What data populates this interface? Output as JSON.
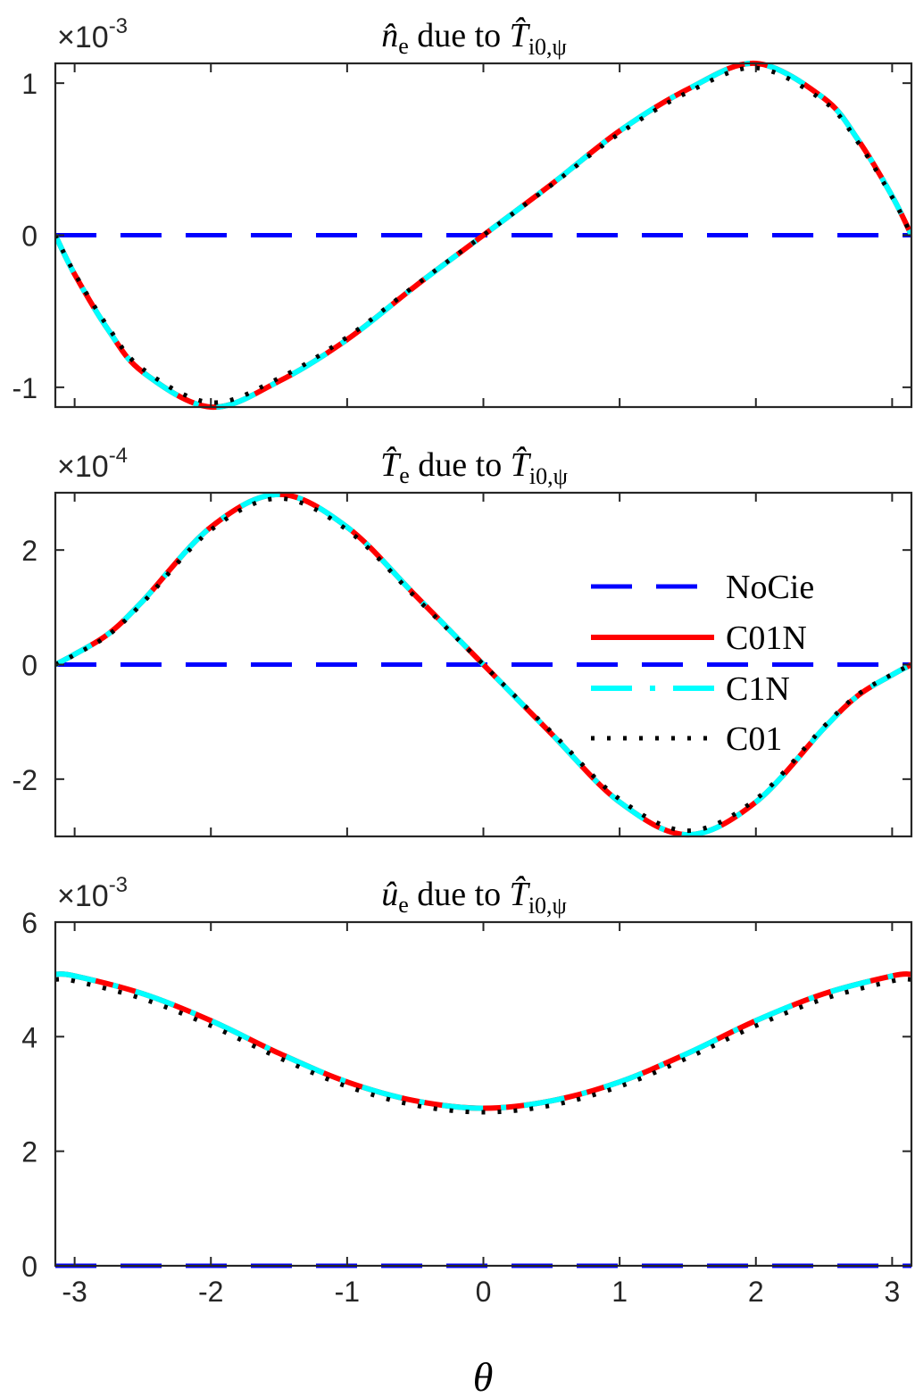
{
  "figure": {
    "xlabel": "θ",
    "xlim": [
      -3.14159,
      3.14159
    ],
    "xticks": [
      -3,
      -2,
      -1,
      0,
      1,
      2,
      3
    ],
    "xtick_labels": [
      "-3",
      "-2",
      "-1",
      "0",
      "1",
      "2",
      "3"
    ]
  },
  "legend": {
    "entries": [
      {
        "label": "NoCie",
        "color": "#0000ff",
        "style": "dashed"
      },
      {
        "label": "C01N",
        "color": "#ff0000",
        "style": "solid"
      },
      {
        "label": "C1N",
        "color": "#00ffff",
        "style": "dashdot"
      },
      {
        "label": "C01",
        "color": "#000000",
        "style": "dotted"
      }
    ]
  },
  "chart_data": [
    {
      "type": "line",
      "title": "n̂e due to T̂i0,ψ",
      "title_parts": {
        "main": "n̂",
        "sub": "e",
        "mid": " due to ",
        "main2": "T̂",
        "sub2": "i0,ψ"
      },
      "xlabel": "",
      "ylabel": "",
      "exponent_label": {
        "base": "×10",
        "exp": "-3"
      },
      "xlim": [
        -3.14159,
        3.14159
      ],
      "ylim": [
        -1.13,
        1.13
      ],
      "yticks": [
        -1,
        0,
        1
      ],
      "ytick_labels": [
        "-1",
        "0",
        "1"
      ],
      "grid": false,
      "x": [
        -3.1416,
        -3.0,
        -2.75,
        -2.5,
        -2.0,
        -1.5,
        -1.0,
        -0.5,
        0.0,
        0.5,
        1.0,
        1.5,
        2.0,
        2.5,
        2.75,
        3.0,
        3.1416
      ],
      "series": [
        {
          "name": "NoCie",
          "values": [
            0,
            0,
            0,
            0,
            0,
            0,
            0,
            0,
            0,
            0,
            0,
            0,
            0,
            0,
            0,
            0,
            0
          ]
        },
        {
          "name": "C01N",
          "values": [
            0,
            -0.257,
            -0.627,
            -0.9,
            -1.13,
            -0.96,
            -0.686,
            -0.335,
            0,
            0.335,
            0.686,
            0.96,
            1.13,
            0.9,
            0.627,
            0.257,
            0
          ]
        },
        {
          "name": "C1N",
          "values": [
            0,
            -0.257,
            -0.627,
            -0.9,
            -1.13,
            -0.96,
            -0.686,
            -0.335,
            0,
            0.335,
            0.686,
            0.96,
            1.13,
            0.9,
            0.627,
            0.257,
            0
          ]
        },
        {
          "name": "C01",
          "values": [
            0,
            -0.25,
            -0.61,
            -0.88,
            -1.1,
            -0.94,
            -0.67,
            -0.33,
            0,
            0.33,
            0.67,
            0.94,
            1.1,
            0.88,
            0.61,
            0.25,
            0
          ]
        }
      ]
    },
    {
      "type": "line",
      "title": "T̂e due to T̂i0,ψ",
      "title_parts": {
        "main": "T̂",
        "sub": "e",
        "mid": " due to ",
        "main2": "T̂",
        "sub2": "i0,ψ"
      },
      "xlabel": "",
      "ylabel": "",
      "exponent_label": {
        "base": "×10",
        "exp": "-4"
      },
      "xlim": [
        -3.14159,
        3.14159
      ],
      "ylim": [
        -3.0,
        3.0
      ],
      "yticks": [
        -2,
        0,
        2
      ],
      "ytick_labels": [
        "-2",
        "0",
        "2"
      ],
      "grid": false,
      "legend_position": "east",
      "x": [
        -3.1416,
        -3.0,
        -2.75,
        -2.5,
        -2.0,
        -1.5,
        -1.0,
        -0.5,
        0.0,
        0.5,
        1.0,
        1.5,
        2.0,
        2.5,
        2.75,
        3.0,
        3.1416
      ],
      "series": [
        {
          "name": "NoCie",
          "values": [
            0,
            0,
            0,
            0,
            0,
            0,
            0,
            0,
            0,
            0,
            0,
            0,
            0,
            0,
            0,
            0,
            0
          ]
        },
        {
          "name": "C01N",
          "values": [
            0,
            0.18,
            0.54,
            1.11,
            2.4,
            2.97,
            2.4,
            1.21,
            0,
            -1.21,
            -2.4,
            -2.97,
            -2.4,
            -1.11,
            -0.54,
            -0.18,
            0
          ]
        },
        {
          "name": "C1N",
          "values": [
            0,
            0.18,
            0.54,
            1.11,
            2.4,
            2.97,
            2.4,
            1.21,
            0,
            -1.21,
            -2.4,
            -2.97,
            -2.4,
            -1.11,
            -0.54,
            -0.18,
            0
          ]
        },
        {
          "name": "C01",
          "values": [
            0,
            0.17,
            0.52,
            1.08,
            2.35,
            2.9,
            2.35,
            1.18,
            0,
            -1.18,
            -2.35,
            -2.9,
            -2.35,
            -1.08,
            -0.52,
            -0.17,
            0
          ]
        }
      ]
    },
    {
      "type": "line",
      "title": "ûe due to T̂i0,ψ",
      "title_parts": {
        "main": "û",
        "sub": "e",
        "mid": " due to ",
        "main2": "T̂",
        "sub2": "i0,ψ"
      },
      "xlabel": "θ",
      "ylabel": "",
      "exponent_label": {
        "base": "×10",
        "exp": "-3"
      },
      "xlim": [
        -3.14159,
        3.14159
      ],
      "ylim": [
        0,
        6
      ],
      "yticks": [
        0,
        2,
        4,
        6
      ],
      "ytick_labels": [
        "0",
        "2",
        "4",
        "6"
      ],
      "grid": false,
      "x": [
        -3.1416,
        -3.0,
        -2.5,
        -2.0,
        -1.5,
        -1.0,
        -0.5,
        0.0,
        0.5,
        1.0,
        1.5,
        2.0,
        2.5,
        3.0,
        3.1416
      ],
      "series": [
        {
          "name": "NoCie",
          "values": [
            0,
            0,
            0,
            0,
            0,
            0,
            0,
            0,
            0,
            0,
            0,
            0,
            0,
            0,
            0
          ]
        },
        {
          "name": "C01N",
          "values": [
            5.09,
            5.06,
            4.75,
            4.28,
            3.71,
            3.21,
            2.88,
            2.75,
            2.88,
            3.21,
            3.71,
            4.28,
            4.75,
            5.06,
            5.09
          ]
        },
        {
          "name": "C1N",
          "values": [
            5.09,
            5.06,
            4.75,
            4.28,
            3.71,
            3.21,
            2.88,
            2.75,
            2.88,
            3.21,
            3.71,
            4.28,
            4.75,
            5.06,
            5.09
          ]
        },
        {
          "name": "C01",
          "values": [
            5.0,
            4.97,
            4.66,
            4.19,
            3.63,
            3.13,
            2.8,
            2.68,
            2.8,
            3.13,
            3.63,
            4.19,
            4.66,
            4.97,
            5.0
          ]
        }
      ]
    }
  ]
}
